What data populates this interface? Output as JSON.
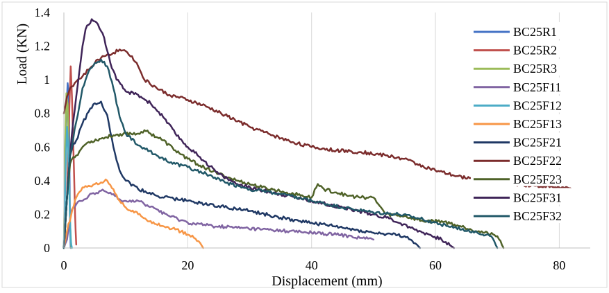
{
  "chart_data": {
    "type": "line",
    "title": "",
    "xlabel": "Displacement (mm)",
    "ylabel": "Load (KN)",
    "xlim": [
      0,
      85
    ],
    "ylim": [
      0,
      1.4
    ],
    "x_ticks": [
      0,
      20,
      40,
      60,
      80
    ],
    "x_tick_labels": [
      "0",
      "20",
      "40",
      "60",
      "80"
    ],
    "y_ticks": [
      0,
      0.2,
      0.4,
      0.6,
      0.8,
      1,
      1.2,
      1.4
    ],
    "y_tick_labels": [
      "0",
      "0.2",
      "0.4",
      "0.6",
      "0.8",
      "1",
      "1.2",
      "1.4"
    ],
    "grid": "vertical",
    "legend_position": "right",
    "series": [
      {
        "name": "BC25R1",
        "color": "#4472C4",
        "points": [
          [
            0,
            0
          ],
          [
            0.3,
            0.7
          ],
          [
            0.6,
            0.98
          ],
          [
            0.8,
            0.9
          ],
          [
            0.9,
            0.5
          ],
          [
            1.0,
            0.1
          ],
          [
            1.1,
            0
          ]
        ]
      },
      {
        "name": "BC25R2",
        "color": "#C0504D",
        "points": [
          [
            0,
            0
          ],
          [
            0.5,
            0.3
          ],
          [
            0.9,
            0.85
          ],
          [
            1.1,
            1.08
          ],
          [
            1.3,
            0.9
          ],
          [
            1.6,
            0.5
          ],
          [
            1.8,
            0.2
          ],
          [
            2.0,
            0.02
          ]
        ]
      },
      {
        "name": "BC25R3",
        "color": "#9BBB59",
        "points": [
          [
            0,
            0
          ],
          [
            0.2,
            0.6
          ],
          [
            0.4,
            0.92
          ],
          [
            0.6,
            0.85
          ],
          [
            0.8,
            0.5
          ],
          [
            1.0,
            0.15
          ],
          [
            1.2,
            0
          ]
        ]
      },
      {
        "name": "BC25F11",
        "color": "#8064A2",
        "points": [
          [
            0,
            0
          ],
          [
            0.5,
            0.05
          ],
          [
            1.2,
            0.22
          ],
          [
            2,
            0.26
          ],
          [
            3,
            0.28
          ],
          [
            4,
            0.31
          ],
          [
            5,
            0.32
          ],
          [
            6,
            0.34
          ],
          [
            7,
            0.33
          ],
          [
            8,
            0.32
          ],
          [
            9,
            0.29
          ],
          [
            10,
            0.28
          ],
          [
            12,
            0.28
          ],
          [
            13,
            0.26
          ],
          [
            15,
            0.23
          ],
          [
            17,
            0.19
          ],
          [
            20,
            0.15
          ],
          [
            24,
            0.13
          ],
          [
            28,
            0.12
          ],
          [
            32,
            0.11
          ],
          [
            36,
            0.1
          ],
          [
            40,
            0.09
          ],
          [
            44,
            0.08
          ],
          [
            48,
            0.06
          ],
          [
            50,
            0.05
          ]
        ]
      },
      {
        "name": "BC25F12",
        "color": "#4BACC6",
        "points": [
          [
            0,
            0
          ],
          [
            0.3,
            0.5
          ],
          [
            0.5,
            0.72
          ],
          [
            0.7,
            0.6
          ],
          [
            0.9,
            0.3
          ],
          [
            1.1,
            0.05
          ],
          [
            1.3,
            0
          ]
        ]
      },
      {
        "name": "BC25F13",
        "color": "#F79646",
        "points": [
          [
            0,
            0
          ],
          [
            0.5,
            0.1
          ],
          [
            1.2,
            0.2
          ],
          [
            2,
            0.3
          ],
          [
            3,
            0.36
          ],
          [
            4,
            0.37
          ],
          [
            5,
            0.38
          ],
          [
            6,
            0.39
          ],
          [
            7,
            0.4
          ],
          [
            8,
            0.35
          ],
          [
            9,
            0.28
          ],
          [
            10,
            0.24
          ],
          [
            12,
            0.2
          ],
          [
            14,
            0.16
          ],
          [
            16,
            0.13
          ],
          [
            18,
            0.11
          ],
          [
            20,
            0.08
          ],
          [
            21,
            0.06
          ],
          [
            22,
            0.03
          ],
          [
            22.5,
            0
          ]
        ]
      },
      {
        "name": "BC25F21",
        "color": "#1F3864",
        "points": [
          [
            0,
            0
          ],
          [
            0.5,
            0.3
          ],
          [
            1,
            0.55
          ],
          [
            1.5,
            0.62
          ],
          [
            2,
            0.64
          ],
          [
            3,
            0.74
          ],
          [
            4,
            0.81
          ],
          [
            5,
            0.86
          ],
          [
            6,
            0.87
          ],
          [
            7,
            0.79
          ],
          [
            8,
            0.6
          ],
          [
            9,
            0.46
          ],
          [
            10,
            0.4
          ],
          [
            12,
            0.35
          ],
          [
            15,
            0.31
          ],
          [
            20,
            0.28
          ],
          [
            25,
            0.25
          ],
          [
            30,
            0.22
          ],
          [
            35,
            0.18
          ],
          [
            40,
            0.15
          ],
          [
            45,
            0.12
          ],
          [
            50,
            0.09
          ],
          [
            53,
            0.08
          ],
          [
            55,
            0.07
          ],
          [
            56,
            0.05
          ],
          [
            57,
            0.02
          ],
          [
            57.5,
            0
          ]
        ]
      },
      {
        "name": "BC25F22",
        "color": "#7B2C2C",
        "points": [
          [
            0,
            0.8
          ],
          [
            0.5,
            0.9
          ],
          [
            1,
            0.95
          ],
          [
            2,
            0.99
          ],
          [
            3,
            1.02
          ],
          [
            4,
            1.06
          ],
          [
            5,
            1.1
          ],
          [
            6,
            1.13
          ],
          [
            7,
            1.15
          ],
          [
            8,
            1.16
          ],
          [
            9,
            1.18
          ],
          [
            10,
            1.17
          ],
          [
            11,
            1.14
          ],
          [
            12,
            1.08
          ],
          [
            13,
            1.0
          ],
          [
            15,
            0.95
          ],
          [
            17,
            0.91
          ],
          [
            20,
            0.88
          ],
          [
            23,
            0.84
          ],
          [
            26,
            0.79
          ],
          [
            30,
            0.72
          ],
          [
            33,
            0.68
          ],
          [
            36,
            0.64
          ],
          [
            40,
            0.6
          ],
          [
            44,
            0.58
          ],
          [
            48,
            0.57
          ],
          [
            52,
            0.55
          ],
          [
            55,
            0.53
          ],
          [
            57,
            0.5
          ],
          [
            60,
            0.46
          ],
          [
            63,
            0.43
          ],
          [
            66,
            0.41
          ],
          [
            70,
            0.4
          ],
          [
            73,
            0.38
          ],
          [
            76,
            0.37
          ],
          [
            80,
            0.36
          ],
          [
            82,
            0.35
          ],
          [
            83,
            0.3
          ]
        ]
      },
      {
        "name": "BC25F23",
        "color": "#4F6228",
        "points": [
          [
            0,
            0
          ],
          [
            0.5,
            0.3
          ],
          [
            1,
            0.5
          ],
          [
            1.5,
            0.54
          ],
          [
            2,
            0.55
          ],
          [
            3,
            0.6
          ],
          [
            4,
            0.63
          ],
          [
            6,
            0.65
          ],
          [
            8,
            0.67
          ],
          [
            10,
            0.68
          ],
          [
            12,
            0.68
          ],
          [
            13,
            0.7
          ],
          [
            14,
            0.68
          ],
          [
            16,
            0.64
          ],
          [
            18,
            0.58
          ],
          [
            20,
            0.53
          ],
          [
            22,
            0.49
          ],
          [
            25,
            0.44
          ],
          [
            28,
            0.4
          ],
          [
            32,
            0.36
          ],
          [
            36,
            0.33
          ],
          [
            40,
            0.3
          ],
          [
            41,
            0.38
          ],
          [
            42,
            0.35
          ],
          [
            44,
            0.33
          ],
          [
            46,
            0.31
          ],
          [
            48,
            0.3
          ],
          [
            50,
            0.3
          ],
          [
            51,
            0.25
          ],
          [
            52,
            0.2
          ],
          [
            55,
            0.19
          ],
          [
            58,
            0.16
          ],
          [
            61,
            0.16
          ],
          [
            64,
            0.13
          ],
          [
            67,
            0.1
          ],
          [
            70,
            0.07
          ],
          [
            71,
            0
          ]
        ]
      },
      {
        "name": "BC25F31",
        "color": "#3F2458",
        "points": [
          [
            0,
            0
          ],
          [
            0.5,
            0.3
          ],
          [
            1,
            0.55
          ],
          [
            1.5,
            0.75
          ],
          [
            2,
            0.9
          ],
          [
            2.5,
            1.05
          ],
          [
            3,
            1.2
          ],
          [
            3.5,
            1.3
          ],
          [
            4.5,
            1.36
          ],
          [
            5.5,
            1.33
          ],
          [
            6.5,
            1.25
          ],
          [
            7.5,
            1.1
          ],
          [
            8.5,
            1.0
          ],
          [
            10,
            0.93
          ],
          [
            12,
            0.91
          ],
          [
            14,
            0.86
          ],
          [
            16,
            0.78
          ],
          [
            18,
            0.68
          ],
          [
            20,
            0.6
          ],
          [
            22,
            0.54
          ],
          [
            25,
            0.44
          ],
          [
            28,
            0.38
          ],
          [
            31,
            0.35
          ],
          [
            35,
            0.32
          ],
          [
            40,
            0.28
          ],
          [
            45,
            0.24
          ],
          [
            50,
            0.2
          ],
          [
            53,
            0.17
          ],
          [
            56,
            0.12
          ],
          [
            59,
            0.08
          ],
          [
            61,
            0.05
          ],
          [
            63,
            0
          ]
        ]
      },
      {
        "name": "BC25F32",
        "color": "#215868",
        "points": [
          [
            0,
            0
          ],
          [
            0.5,
            0.3
          ],
          [
            1,
            0.55
          ],
          [
            2,
            0.75
          ],
          [
            3,
            0.95
          ],
          [
            4,
            1.05
          ],
          [
            5,
            1.1
          ],
          [
            6,
            1.12
          ],
          [
            7,
            1.08
          ],
          [
            8,
            0.95
          ],
          [
            9,
            0.78
          ],
          [
            10,
            0.68
          ],
          [
            12,
            0.61
          ],
          [
            15,
            0.55
          ],
          [
            18,
            0.5
          ],
          [
            20,
            0.48
          ],
          [
            23,
            0.44
          ],
          [
            26,
            0.39
          ],
          [
            30,
            0.35
          ],
          [
            35,
            0.32
          ],
          [
            40,
            0.28
          ],
          [
            45,
            0.24
          ],
          [
            50,
            0.21
          ],
          [
            54,
            0.2
          ],
          [
            58,
            0.17
          ],
          [
            62,
            0.13
          ],
          [
            66,
            0.1
          ],
          [
            69,
            0.07
          ],
          [
            70,
            0
          ]
        ]
      }
    ]
  }
}
